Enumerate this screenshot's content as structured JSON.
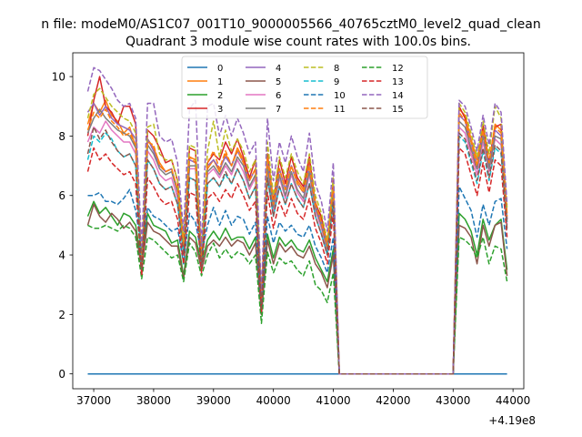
{
  "chart_data": {
    "type": "line",
    "suptitle": "n file: modeM0/AS1C07_001T10_9000005566_40765cztM0_level2_quad_clean",
    "title": "Quadrant 3 module wise count rates with 100.0s bins.",
    "xlabel": "",
    "ylabel": "",
    "x_offset_label": "+4.19e8",
    "xlim": [
      36650,
      44180
    ],
    "ylim": [
      -0.5,
      10.8
    ],
    "xticks": [
      "37000",
      "38000",
      "39000",
      "40000",
      "41000",
      "42000",
      "43000",
      "44000"
    ],
    "yticks": [
      "0",
      "2",
      "4",
      "6",
      "8",
      "10"
    ],
    "grid": false,
    "legend_position": "top-center",
    "legend_columns": 4,
    "x": [
      36900,
      37000,
      37100,
      37200,
      37300,
      37400,
      37500,
      37600,
      37700,
      37800,
      37900,
      38000,
      38100,
      38200,
      38300,
      38400,
      38500,
      38600,
      38700,
      38800,
      38900,
      39000,
      39100,
      39200,
      39300,
      39400,
      39500,
      39600,
      39700,
      39800,
      39900,
      40000,
      40100,
      40200,
      40300,
      40400,
      40500,
      40600,
      40700,
      40800,
      40900,
      41000,
      41100,
      41200,
      41300,
      41400,
      41500,
      41600,
      41700,
      41800,
      41900,
      42000,
      42100,
      42200,
      42300,
      42400,
      42500,
      42600,
      42700,
      42800,
      42900,
      43000,
      43100,
      43200,
      43300,
      43400,
      43500,
      43600,
      43700,
      43800,
      43900
    ],
    "series": [
      {
        "name": "0",
        "color": "#1f77b4",
        "style": "solid",
        "values": [
          0,
          0,
          0,
          0,
          0,
          0,
          0,
          0,
          0,
          0,
          0,
          0,
          0,
          0,
          0,
          0,
          0,
          0,
          0,
          0,
          0,
          0,
          0,
          0,
          0,
          0,
          0,
          0,
          0,
          0,
          0,
          0,
          0,
          0,
          0,
          0,
          0,
          0,
          0,
          0,
          0,
          0,
          0,
          0,
          0,
          0,
          0,
          0,
          0,
          0,
          0,
          0,
          0,
          0,
          0,
          0,
          0,
          0,
          0,
          0,
          0,
          0,
          0,
          0,
          0,
          0,
          0,
          0,
          0,
          0,
          0
        ]
      },
      {
        "name": "1",
        "color": "#ff7f0e",
        "style": "solid",
        "values": [
          8.4,
          9.1,
          8.8,
          9.2,
          8.7,
          8.5,
          8.1,
          8.3,
          7.6,
          3.7,
          7.9,
          7.6,
          7.1,
          6.8,
          6.9,
          6.2,
          4.4,
          7.3,
          7.2,
          3.9,
          6.9,
          7.2,
          6.8,
          7.4,
          7.0,
          7.6,
          7.2,
          6.5,
          6.9,
          2.4,
          7.3,
          5.8,
          6.9,
          6.2,
          7.0,
          6.5,
          6.2,
          7.1,
          5.8,
          5.2,
          4.4,
          6.5,
          0,
          0,
          0,
          0,
          0,
          0,
          0,
          0,
          0,
          0,
          0,
          0,
          0,
          0,
          0,
          0,
          0,
          0,
          0,
          0,
          8.9,
          8.7,
          7.9,
          7.2,
          8.2,
          7.1,
          8.4,
          8.2,
          5.4
        ]
      },
      {
        "name": "2",
        "color": "#2ca02c",
        "style": "solid",
        "values": [
          5.3,
          5.8,
          5.4,
          5.6,
          5.3,
          5.0,
          5.4,
          5.3,
          5.0,
          3.7,
          5.4,
          5.0,
          4.9,
          4.8,
          4.4,
          4.5,
          3.3,
          4.8,
          4.6,
          3.7,
          4.5,
          4.8,
          4.5,
          4.9,
          4.5,
          4.6,
          4.6,
          4.2,
          4.6,
          2.0,
          4.7,
          3.9,
          4.6,
          4.3,
          4.5,
          4.2,
          4.1,
          4.5,
          3.9,
          3.5,
          3.1,
          4.2,
          0,
          0,
          0,
          0,
          0,
          0,
          0,
          0,
          0,
          0,
          0,
          0,
          0,
          0,
          0,
          0,
          0,
          0,
          0,
          0,
          5.4,
          5.2,
          4.8,
          4.0,
          5.2,
          4.5,
          5.0,
          5.2,
          3.5
        ]
      },
      {
        "name": "3",
        "color": "#d62728",
        "style": "solid",
        "values": [
          8.0,
          9.2,
          10.0,
          9.0,
          8.8,
          8.4,
          9.0,
          9.0,
          8.4,
          3.4,
          8.2,
          8.0,
          7.6,
          7.1,
          7.2,
          6.5,
          4.4,
          7.6,
          7.5,
          3.9,
          7.1,
          7.4,
          7.2,
          7.8,
          7.4,
          7.9,
          7.3,
          6.6,
          7.2,
          2.3,
          7.4,
          5.8,
          7.2,
          6.4,
          7.3,
          6.6,
          6.3,
          7.3,
          5.7,
          5.3,
          4.3,
          6.5,
          0,
          0,
          0,
          0,
          0,
          0,
          0,
          0,
          0,
          0,
          0,
          0,
          0,
          0,
          0,
          0,
          0,
          0,
          0,
          0,
          9.0,
          8.6,
          7.4,
          6.9,
          8.4,
          7.1,
          8.3,
          8.4,
          5.2
        ]
      },
      {
        "name": "4",
        "color": "#9467bd",
        "style": "solid",
        "values": [
          8.8,
          9.1,
          8.7,
          9.0,
          8.6,
          8.4,
          8.3,
          8.2,
          7.9,
          3.6,
          7.9,
          7.5,
          7.0,
          6.8,
          6.9,
          6.1,
          4.3,
          7.2,
          7.1,
          3.9,
          7.0,
          7.2,
          6.9,
          7.3,
          7.0,
          7.5,
          7.1,
          6.5,
          6.9,
          2.5,
          7.2,
          5.7,
          6.9,
          6.2,
          7.0,
          6.4,
          6.1,
          7.0,
          5.7,
          5.1,
          4.3,
          6.3,
          0,
          0,
          0,
          0,
          0,
          0,
          0,
          0,
          0,
          0,
          0,
          0,
          0,
          0,
          0,
          0,
          0,
          0,
          0,
          0,
          8.7,
          8.5,
          7.8,
          7.0,
          8.1,
          7.0,
          8.2,
          8.0,
          5.2
        ]
      },
      {
        "name": "5",
        "color": "#8c564b",
        "style": "solid",
        "values": [
          5.0,
          5.7,
          5.3,
          5.1,
          5.4,
          5.2,
          4.9,
          5.1,
          4.8,
          3.5,
          5.1,
          4.8,
          4.7,
          4.5,
          4.3,
          4.3,
          3.2,
          4.6,
          4.4,
          3.5,
          4.3,
          4.5,
          4.3,
          4.6,
          4.3,
          4.5,
          4.4,
          4.0,
          4.4,
          2.0,
          4.5,
          3.7,
          4.4,
          4.1,
          4.3,
          4.0,
          3.9,
          4.3,
          3.7,
          3.4,
          2.9,
          4.0,
          0,
          0,
          0,
          0,
          0,
          0,
          0,
          0,
          0,
          0,
          0,
          0,
          0,
          0,
          0,
          0,
          0,
          0,
          0,
          0,
          5.0,
          4.9,
          4.6,
          3.7,
          5.0,
          4.3,
          5.0,
          5.1,
          3.3
        ]
      },
      {
        "name": "6",
        "color": "#e377c2",
        "style": "solid",
        "values": [
          7.8,
          8.3,
          8.1,
          8.5,
          8.2,
          8.0,
          7.8,
          7.8,
          7.4,
          3.5,
          7.5,
          7.2,
          6.7,
          6.5,
          6.6,
          5.9,
          4.1,
          6.9,
          6.9,
          3.8,
          6.7,
          6.9,
          6.6,
          7.0,
          6.7,
          7.2,
          6.8,
          6.2,
          6.6,
          2.3,
          6.9,
          5.5,
          6.6,
          5.9,
          6.7,
          6.1,
          5.8,
          6.7,
          5.5,
          4.9,
          4.1,
          6.0,
          0,
          0,
          0,
          0,
          0,
          0,
          0,
          0,
          0,
          0,
          0,
          0,
          0,
          0,
          0,
          0,
          0,
          0,
          0,
          0,
          8.3,
          8.1,
          7.4,
          6.7,
          7.8,
          6.8,
          7.9,
          7.7,
          5.0
        ]
      },
      {
        "name": "7",
        "color": "#7f7f7f",
        "style": "solid",
        "values": [
          8.1,
          8.6,
          8.9,
          8.6,
          8.4,
          8.2,
          8.1,
          8.0,
          7.6,
          3.6,
          7.7,
          7.4,
          6.9,
          6.7,
          6.8,
          6.1,
          4.2,
          7.0,
          7.0,
          3.9,
          6.8,
          7.0,
          6.7,
          7.1,
          6.8,
          7.3,
          7.0,
          6.3,
          6.7,
          2.4,
          7.0,
          5.6,
          6.7,
          6.0,
          6.8,
          6.2,
          5.9,
          6.8,
          5.6,
          5.0,
          4.2,
          6.1,
          0,
          0,
          0,
          0,
          0,
          0,
          0,
          0,
          0,
          0,
          0,
          0,
          0,
          0,
          0,
          0,
          0,
          0,
          0,
          0,
          8.5,
          8.3,
          7.6,
          6.9,
          8.0,
          6.9,
          8.0,
          7.9,
          5.1
        ]
      },
      {
        "name": "8",
        "color": "#bcbd22",
        "style": "dashed",
        "values": [
          8.6,
          9.4,
          9.6,
          9.3,
          9.0,
          8.8,
          8.6,
          8.5,
          8.1,
          3.8,
          8.3,
          8.4,
          7.4,
          7.2,
          7.2,
          6.5,
          4.5,
          7.7,
          7.6,
          4.1,
          7.5,
          8.5,
          7.3,
          8.2,
          7.5,
          7.9,
          7.5,
          6.8,
          7.2,
          2.5,
          7.8,
          6.0,
          7.3,
          6.6,
          7.4,
          6.8,
          6.4,
          7.4,
          6.0,
          5.4,
          4.5,
          6.6,
          0,
          0,
          0,
          0,
          0,
          0,
          0,
          0,
          0,
          0,
          0,
          0,
          0,
          0,
          0,
          0,
          0,
          0,
          0,
          0,
          9.1,
          8.8,
          8.1,
          7.3,
          8.5,
          7.4,
          9.0,
          8.6,
          5.6
        ]
      },
      {
        "name": "9",
        "color": "#17becf",
        "style": "dashed",
        "values": [
          7.2,
          8.0,
          7.8,
          8.1,
          7.9,
          7.5,
          7.3,
          7.4,
          7.0,
          3.4,
          7.2,
          6.9,
          6.4,
          6.2,
          6.3,
          5.7,
          4.0,
          6.6,
          6.5,
          3.6,
          6.4,
          6.6,
          6.3,
          6.7,
          6.4,
          6.9,
          6.5,
          5.9,
          6.3,
          2.2,
          6.6,
          5.3,
          6.3,
          5.7,
          6.4,
          5.9,
          5.6,
          6.4,
          5.3,
          4.7,
          4.0,
          5.8,
          0,
          0,
          0,
          0,
          0,
          0,
          0,
          0,
          0,
          0,
          0,
          0,
          0,
          0,
          0,
          0,
          0,
          0,
          0,
          0,
          8.0,
          7.8,
          7.1,
          6.4,
          7.5,
          6.5,
          7.6,
          7.4,
          4.8
        ]
      },
      {
        "name": "10",
        "color": "#1f77b4",
        "style": "dashed",
        "values": [
          6.0,
          6.0,
          6.1,
          5.8,
          5.8,
          5.7,
          5.9,
          6.2,
          5.5,
          4.1,
          5.6,
          5.3,
          5.2,
          5.0,
          4.8,
          4.9,
          3.7,
          5.4,
          5.1,
          4.0,
          5.0,
          5.6,
          5.0,
          5.5,
          5.0,
          5.3,
          5.2,
          4.7,
          5.1,
          2.2,
          5.3,
          4.4,
          5.1,
          4.8,
          5.0,
          4.7,
          4.6,
          5.0,
          4.3,
          3.9,
          3.4,
          4.6,
          0,
          0,
          0,
          0,
          0,
          0,
          0,
          0,
          0,
          0,
          0,
          0,
          0,
          0,
          0,
          0,
          0,
          0,
          0,
          0,
          6.3,
          5.9,
          5.5,
          4.6,
          5.7,
          5.0,
          5.8,
          5.9,
          4.2
        ]
      },
      {
        "name": "11",
        "color": "#ff7f0e",
        "style": "dashed",
        "values": [
          8.2,
          8.8,
          8.6,
          8.9,
          8.5,
          8.3,
          8.0,
          8.1,
          7.7,
          3.6,
          7.8,
          7.7,
          7.0,
          6.8,
          6.9,
          6.2,
          4.3,
          7.3,
          7.1,
          3.9,
          7.1,
          7.5,
          6.9,
          7.5,
          7.0,
          7.5,
          7.1,
          6.5,
          6.9,
          2.4,
          7.3,
          5.7,
          6.9,
          6.2,
          7.0,
          6.4,
          6.1,
          7.0,
          5.7,
          5.1,
          4.3,
          6.3,
          0,
          0,
          0,
          0,
          0,
          0,
          0,
          0,
          0,
          0,
          0,
          0,
          0,
          0,
          0,
          0,
          0,
          0,
          0,
          0,
          8.8,
          8.5,
          7.8,
          7.0,
          8.2,
          7.1,
          8.3,
          8.1,
          5.3
        ]
      },
      {
        "name": "12",
        "color": "#2ca02c",
        "style": "dashed",
        "values": [
          5.0,
          4.9,
          4.9,
          5.0,
          4.9,
          4.8,
          5.0,
          4.9,
          4.6,
          3.2,
          4.6,
          4.5,
          4.3,
          4.1,
          3.9,
          4.0,
          3.1,
          4.4,
          4.1,
          3.3,
          4.0,
          4.4,
          3.9,
          4.2,
          3.9,
          4.1,
          4.0,
          3.7,
          4.0,
          1.7,
          4.1,
          3.4,
          3.9,
          3.7,
          3.8,
          3.5,
          3.3,
          3.8,
          3.0,
          2.8,
          2.4,
          3.4,
          0,
          0,
          0,
          0,
          0,
          0,
          0,
          0,
          0,
          0,
          0,
          0,
          0,
          0,
          0,
          0,
          0,
          0,
          0,
          0,
          4.6,
          4.5,
          4.3,
          3.9,
          4.6,
          3.7,
          4.3,
          4.2,
          3.1
        ]
      },
      {
        "name": "13",
        "color": "#d62728",
        "style": "dashed",
        "values": [
          6.8,
          7.6,
          7.2,
          7.4,
          7.1,
          6.9,
          6.7,
          6.8,
          6.4,
          3.3,
          6.6,
          6.3,
          5.9,
          5.7,
          5.8,
          5.2,
          3.7,
          6.1,
          6.0,
          3.4,
          5.9,
          6.1,
          5.8,
          6.2,
          5.9,
          6.4,
          6.0,
          5.5,
          5.8,
          2.1,
          6.1,
          4.9,
          5.8,
          5.3,
          5.9,
          5.4,
          5.2,
          5.9,
          4.9,
          4.4,
          3.7,
          5.4,
          0,
          0,
          0,
          0,
          0,
          0,
          0,
          0,
          0,
          0,
          0,
          0,
          0,
          0,
          0,
          0,
          0,
          0,
          0,
          0,
          7.6,
          7.4,
          6.7,
          6.0,
          7.1,
          6.1,
          7.2,
          7.0,
          4.6
        ]
      },
      {
        "name": "14",
        "color": "#9467bd",
        "style": "dashed",
        "values": [
          9.5,
          10.3,
          10.2,
          9.9,
          9.6,
          9.2,
          9.0,
          9.1,
          8.6,
          4.3,
          9.1,
          9.1,
          8.0,
          7.8,
          7.9,
          7.1,
          4.8,
          8.9,
          9.2,
          4.3,
          9.0,
          9.1,
          8.0,
          8.7,
          8.0,
          8.6,
          8.1,
          7.4,
          7.8,
          2.7,
          8.6,
          6.5,
          7.8,
          7.1,
          8.0,
          7.3,
          6.8,
          8.1,
          6.4,
          5.8,
          4.8,
          7.1,
          0,
          0,
          0,
          0,
          0,
          0,
          0,
          0,
          0,
          0,
          0,
          0,
          0,
          0,
          0,
          0,
          0,
          0,
          0,
          0,
          9.2,
          9.0,
          8.3,
          7.5,
          8.7,
          7.7,
          9.1,
          8.8,
          5.7
        ]
      },
      {
        "name": "15",
        "color": "#8c564b",
        "style": "dashed",
        "values": [
          7.4,
          8.3,
          7.9,
          8.2,
          7.8,
          7.5,
          7.3,
          7.4,
          7.0,
          3.5,
          7.2,
          6.9,
          6.4,
          6.2,
          6.3,
          5.7,
          4.0,
          6.6,
          6.5,
          3.6,
          6.4,
          6.6,
          6.3,
          6.8,
          6.4,
          6.9,
          6.5,
          5.9,
          6.3,
          2.2,
          6.6,
          5.3,
          6.3,
          5.7,
          6.4,
          5.9,
          5.6,
          6.4,
          5.3,
          4.7,
          4.0,
          5.8,
          0,
          0,
          0,
          0,
          0,
          0,
          0,
          0,
          0,
          0,
          0,
          0,
          0,
          0,
          0,
          0,
          0,
          0,
          0,
          0,
          8.1,
          7.9,
          7.2,
          6.5,
          7.6,
          6.6,
          7.7,
          7.5,
          4.9
        ]
      }
    ]
  }
}
